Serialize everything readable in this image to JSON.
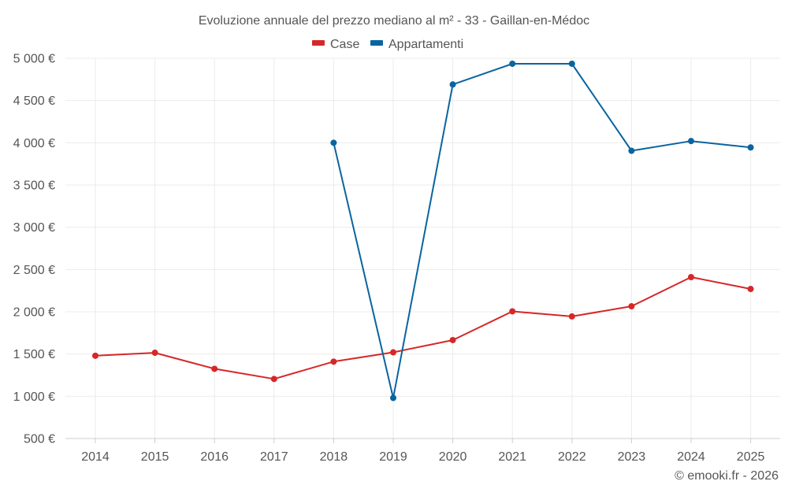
{
  "chart_data": {
    "type": "line",
    "title": "Evoluzione annuale del prezzo mediano al m² - 33 - Gaillan-en-Médoc",
    "xlabel": "",
    "ylabel": "",
    "categories": [
      "2014",
      "2015",
      "2016",
      "2017",
      "2018",
      "2019",
      "2020",
      "2021",
      "2022",
      "2023",
      "2024",
      "2025"
    ],
    "ylim": [
      500,
      5000
    ],
    "yticks": [
      500,
      1000,
      1500,
      2000,
      2500,
      3000,
      3500,
      4000,
      4500,
      5000
    ],
    "ytick_labels": [
      "500 €",
      "1 000 €",
      "1 500 €",
      "2 000 €",
      "2 500 €",
      "3 000 €",
      "3 500 €",
      "4 000 €",
      "4 500 €",
      "5 000 €"
    ],
    "grid": true,
    "legend_position": "top-center",
    "series": [
      {
        "name": "Case",
        "color": "#d62728",
        "values": [
          1480,
          1515,
          1325,
          1205,
          1410,
          1520,
          1665,
          2005,
          1945,
          2065,
          2410,
          2270
        ]
      },
      {
        "name": "Appartamenti",
        "color": "#0a64a0",
        "values": [
          null,
          null,
          null,
          null,
          4000,
          980,
          4690,
          4935,
          4935,
          3905,
          4020,
          3945
        ]
      }
    ],
    "credit": "© emooki.fr - 2026"
  }
}
